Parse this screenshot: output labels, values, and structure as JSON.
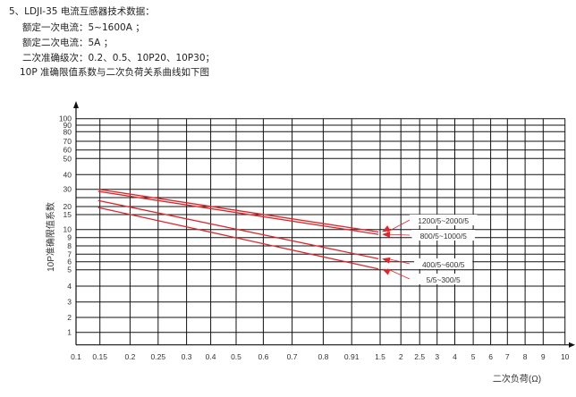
{
  "document": {
    "heading": "5、LDJI-35 电流互感器技术数据：",
    "lines": [
      "额定一次电流：5~1600A ；",
      "额定二次电流：5A ；",
      "二次准确级次：0.2、0.5、10P20、10P30；",
      "10P 准确限值系数与二次负荷关系曲线如下图"
    ]
  },
  "chart_data": {
    "type": "line",
    "title": "",
    "xlabel": "二次负荷(Ω)",
    "ylabel": "10P准确限值系数",
    "x_ticks": [
      "0.1",
      "0.15",
      "0.2",
      "0.25",
      "0.3",
      "0.4",
      "0.5",
      "0.6",
      "0.7",
      "0.8",
      "0.91",
      "1.5",
      "2",
      "2.5",
      "3",
      "4",
      "5",
      "6",
      "7",
      "8",
      "9",
      "10"
    ],
    "y_ticks": [
      "1",
      "2",
      "3",
      "4",
      "5",
      "6",
      "7",
      "8",
      "9",
      "10",
      "15",
      "20",
      "30",
      "40",
      "50",
      "60",
      "70",
      "80",
      "90",
      "100"
    ],
    "grid": true,
    "series_color": "#e0262b",
    "series": [
      {
        "name": "1200/5~2000/5",
        "x": [
          0.15,
          1.5
        ],
        "y": [
          30,
          9.7
        ]
      },
      {
        "name": "800/5~1000/5",
        "x": [
          0.15,
          1.5
        ],
        "y": [
          28.8,
          9.4
        ]
      },
      {
        "name": "400/5~600/5",
        "x": [
          0.15,
          1.5
        ],
        "y": [
          23.5,
          6.4
        ]
      },
      {
        "name": "5/5~300/5",
        "x": [
          0.15,
          1.5
        ],
        "y": [
          19.4,
          5.1
        ]
      }
    ]
  }
}
